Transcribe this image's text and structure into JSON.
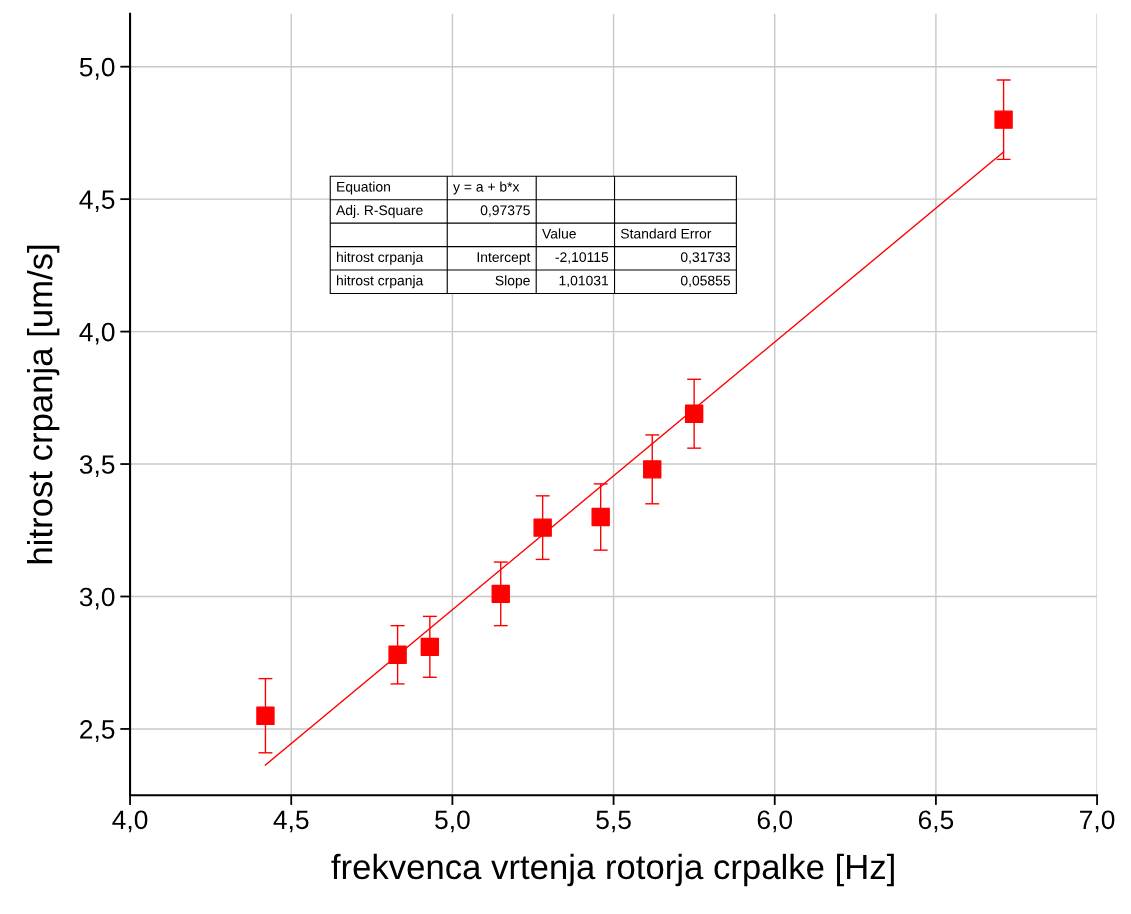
{
  "chart_data": {
    "type": "scatter",
    "xlabel": "frekvenca vrtenja rotorja crpalke [Hz]",
    "ylabel": "hitrost crpanja [um/s]",
    "series": [
      {
        "color": "#ff0000",
        "marker": "square",
        "x": [
          4.42,
          4.83,
          4.93,
          5.15,
          5.28,
          5.46,
          5.62,
          5.75,
          6.71
        ],
        "values": [
          2.55,
          2.78,
          2.81,
          3.01,
          3.26,
          3.3,
          3.48,
          3.69,
          4.8
        ],
        "errors": [
          0.14,
          0.11,
          0.115,
          0.12,
          0.12,
          0.125,
          0.13,
          0.13,
          0.15
        ]
      },
      {
        "type": "line",
        "color": "#ff0000",
        "x": [
          4.42,
          6.71
        ],
        "values": [
          2.364,
          4.678
        ]
      }
    ],
    "xlim": [
      4.0,
      7.0
    ],
    "ylim": [
      2.25,
      5.2
    ],
    "xticks": [
      {
        "value": 4.0,
        "label": "4,0"
      },
      {
        "value": 4.5,
        "label": "4,5"
      },
      {
        "value": 5.0,
        "label": "5,0"
      },
      {
        "value": 5.5,
        "label": "5,5"
      },
      {
        "value": 6.0,
        "label": "6,0"
      },
      {
        "value": 6.5,
        "label": "6,5"
      },
      {
        "value": 7.0,
        "label": "7,0"
      }
    ],
    "yticks": [
      {
        "value": 2.5,
        "label": "2,5"
      },
      {
        "value": 3.0,
        "label": "3,0"
      },
      {
        "value": 3.5,
        "label": "3,5"
      },
      {
        "value": 4.0,
        "label": "4,0"
      },
      {
        "value": 4.5,
        "label": "4,5"
      },
      {
        "value": 5.0,
        "label": "5,0"
      }
    ],
    "grid": true,
    "annotations": [
      "Equation\ty = a + b*x\t\t",
      "Adj. R-Square\t0,97375\t\t",
      "\t\tValue\tStandard Error",
      "hitrost crpanja\tIntercept\t-2,10115\t0,31733",
      "hitrost crpanja\tSlope\t1,01031\t0,05855"
    ]
  }
}
